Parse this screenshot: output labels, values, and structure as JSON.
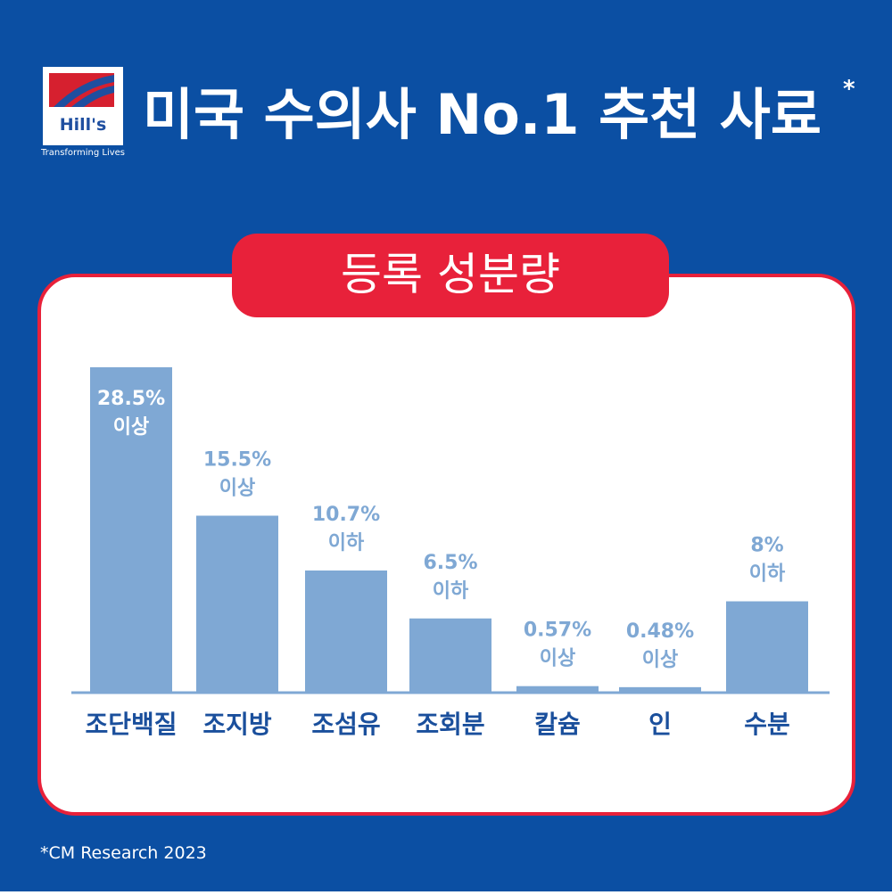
{
  "header": {
    "logo": "Hill's",
    "tagline": "Transforming Lives",
    "title": "미국 수의사 No.1 추천 사료",
    "title_mark": "*"
  },
  "chart_data": {
    "type": "bar",
    "title": "등록 성분량",
    "categories": [
      "조단백질",
      "조지방",
      "조섬유",
      "조회분",
      "칼슘",
      "인",
      "수분"
    ],
    "values": [
      28.5,
      15.5,
      10.7,
      6.5,
      0.57,
      0.48,
      8
    ],
    "value_labels": [
      "28.5%",
      "15.5%",
      "10.7%",
      "6.5%",
      "0.57%",
      "0.48%",
      "8%"
    ],
    "value_qualifiers": [
      "이상",
      "이상",
      "이하",
      "이하",
      "이상",
      "이상",
      "이하"
    ],
    "color": "#7fa8d4"
  },
  "footnote": "*CM Research 2023"
}
